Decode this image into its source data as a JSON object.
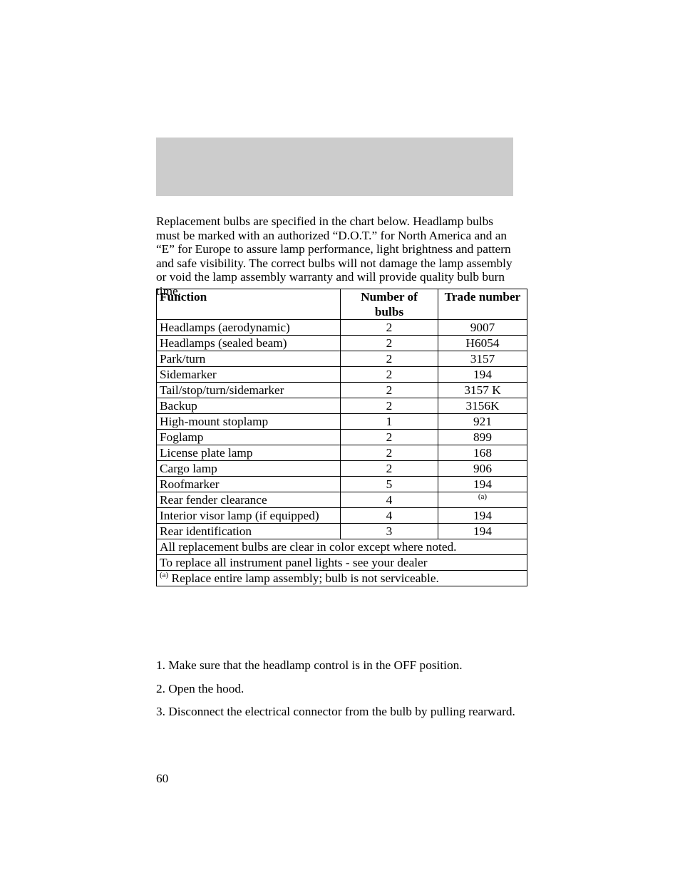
{
  "intro": "Replacement bulbs are specified in the chart below. Headlamp bulbs must be marked with an authorized “D.O.T.” for North America and an “E” for Europe to assure lamp performance, light brightness and pattern and safe visibility. The correct bulbs will not damage the lamp assembly or void the lamp assembly warranty and will provide quality bulb burn time.",
  "table": {
    "headers": {
      "col1": "Function",
      "col2_line1": "Number of",
      "col2_line2": "bulbs",
      "col3": "Trade number"
    },
    "rows": [
      {
        "fn": "Headlamps (aerodynamic)",
        "num": "2",
        "trade": "9007"
      },
      {
        "fn": "Headlamps (sealed beam)",
        "num": "2",
        "trade": "H6054"
      },
      {
        "fn": "Park/turn",
        "num": "2",
        "trade": "3157"
      },
      {
        "fn": "Sidemarker",
        "num": "2",
        "trade": "194"
      },
      {
        "fn": "Tail/stop/turn/sidemarker",
        "num": "2",
        "trade": "3157 K"
      },
      {
        "fn": "Backup",
        "num": "2",
        "trade": "3156K"
      },
      {
        "fn": "High-mount stoplamp",
        "num": "1",
        "trade": "921"
      },
      {
        "fn": "Foglamp",
        "num": "2",
        "trade": "899"
      },
      {
        "fn": "License plate lamp",
        "num": "2",
        "trade": "168"
      },
      {
        "fn": "Cargo lamp",
        "num": "2",
        "trade": "906"
      },
      {
        "fn": "Roofmarker",
        "num": "5",
        "trade": "194"
      },
      {
        "fn": "Rear fender clearance",
        "num": "4",
        "trade": "(a)",
        "trade_sup": true
      },
      {
        "fn": "Interior visor lamp (if equipped)",
        "num": "4",
        "trade": "194"
      },
      {
        "fn": "Rear identification",
        "num": "3",
        "trade": "194"
      }
    ],
    "notes": [
      {
        "text": "All replacement bulbs are clear in color except where noted."
      },
      {
        "text": "To replace all instrument panel lights - see your dealer"
      },
      {
        "sup": "(a)",
        "text": " Replace entire lamp assembly; bulb is not serviceable."
      }
    ]
  },
  "steps": [
    "1. Make sure that the headlamp control is in the OFF position.",
    "2. Open the hood.",
    "3. Disconnect the electrical connector from the bulb by pulling rearward."
  ],
  "page_number": "60",
  "colors": {
    "gray_bar": "#cccccc",
    "text": "#000000",
    "background": "#ffffff",
    "border": "#000000"
  }
}
